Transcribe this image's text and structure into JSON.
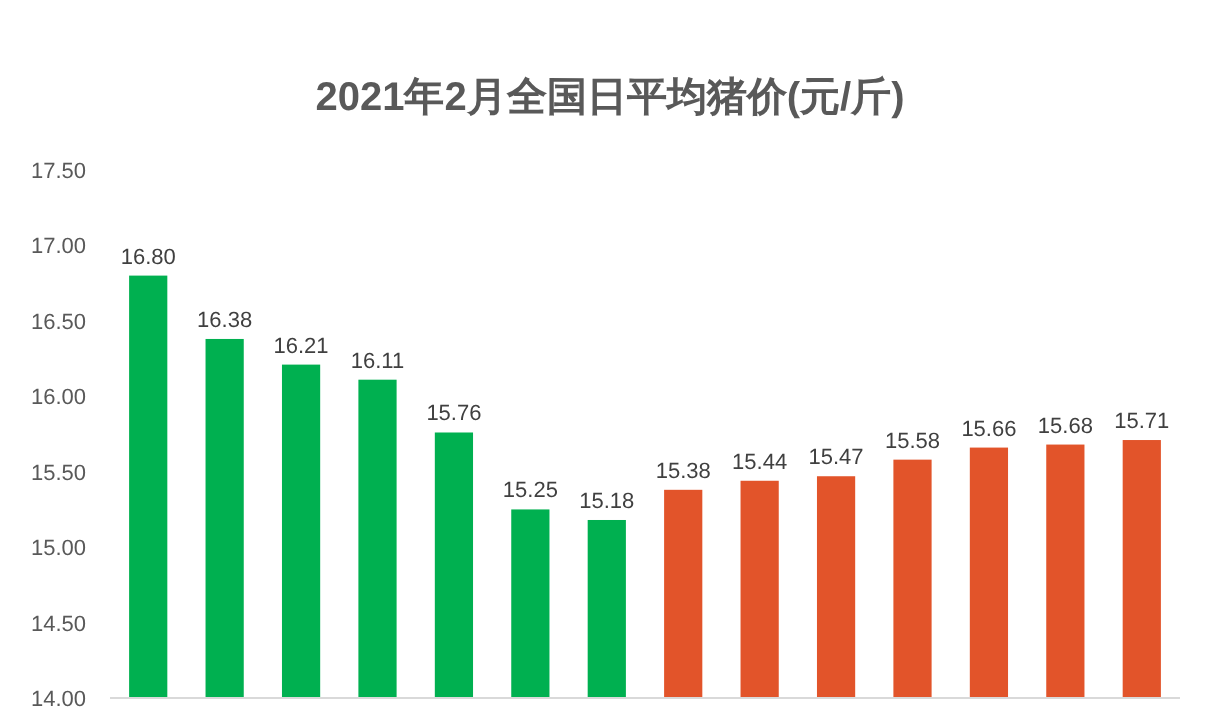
{
  "chart_data": {
    "type": "bar",
    "title": "2021年2月全国日平均猪价(元/斤)",
    "categories": [
      null,
      null,
      null,
      null,
      null,
      null,
      null,
      null,
      null,
      null,
      null,
      null,
      null,
      null
    ],
    "values": [
      16.8,
      16.38,
      16.21,
      16.11,
      15.76,
      15.25,
      15.18,
      15.38,
      15.44,
      15.47,
      15.58,
      15.66,
      15.68,
      15.71
    ],
    "value_labels": [
      "16.80",
      "16.38",
      "16.21",
      "16.11",
      "15.76",
      "15.25",
      "15.18",
      "15.38",
      "15.44",
      "15.47",
      "15.58",
      "15.66",
      "15.68",
      "15.71"
    ],
    "colors": [
      "#00b050",
      "#00b050",
      "#00b050",
      "#00b050",
      "#00b050",
      "#00b050",
      "#00b050",
      "#e2542a",
      "#e2542a",
      "#e2542a",
      "#e2542a",
      "#e2542a",
      "#e2542a",
      "#e2542a"
    ],
    "ylim": [
      14,
      17.5
    ],
    "yticks": [
      {
        "value": 14,
        "label": "14.00"
      },
      {
        "value": 14.5,
        "label": "14.50"
      },
      {
        "value": 15,
        "label": "15.00"
      },
      {
        "value": 15.5,
        "label": "15.50"
      },
      {
        "value": 16,
        "label": "16.00"
      },
      {
        "value": 16.5,
        "label": "16.50"
      },
      {
        "value": 17,
        "label": "17.00"
      },
      {
        "value": 17.5,
        "label": "17.50"
      }
    ],
    "grid": false
  }
}
